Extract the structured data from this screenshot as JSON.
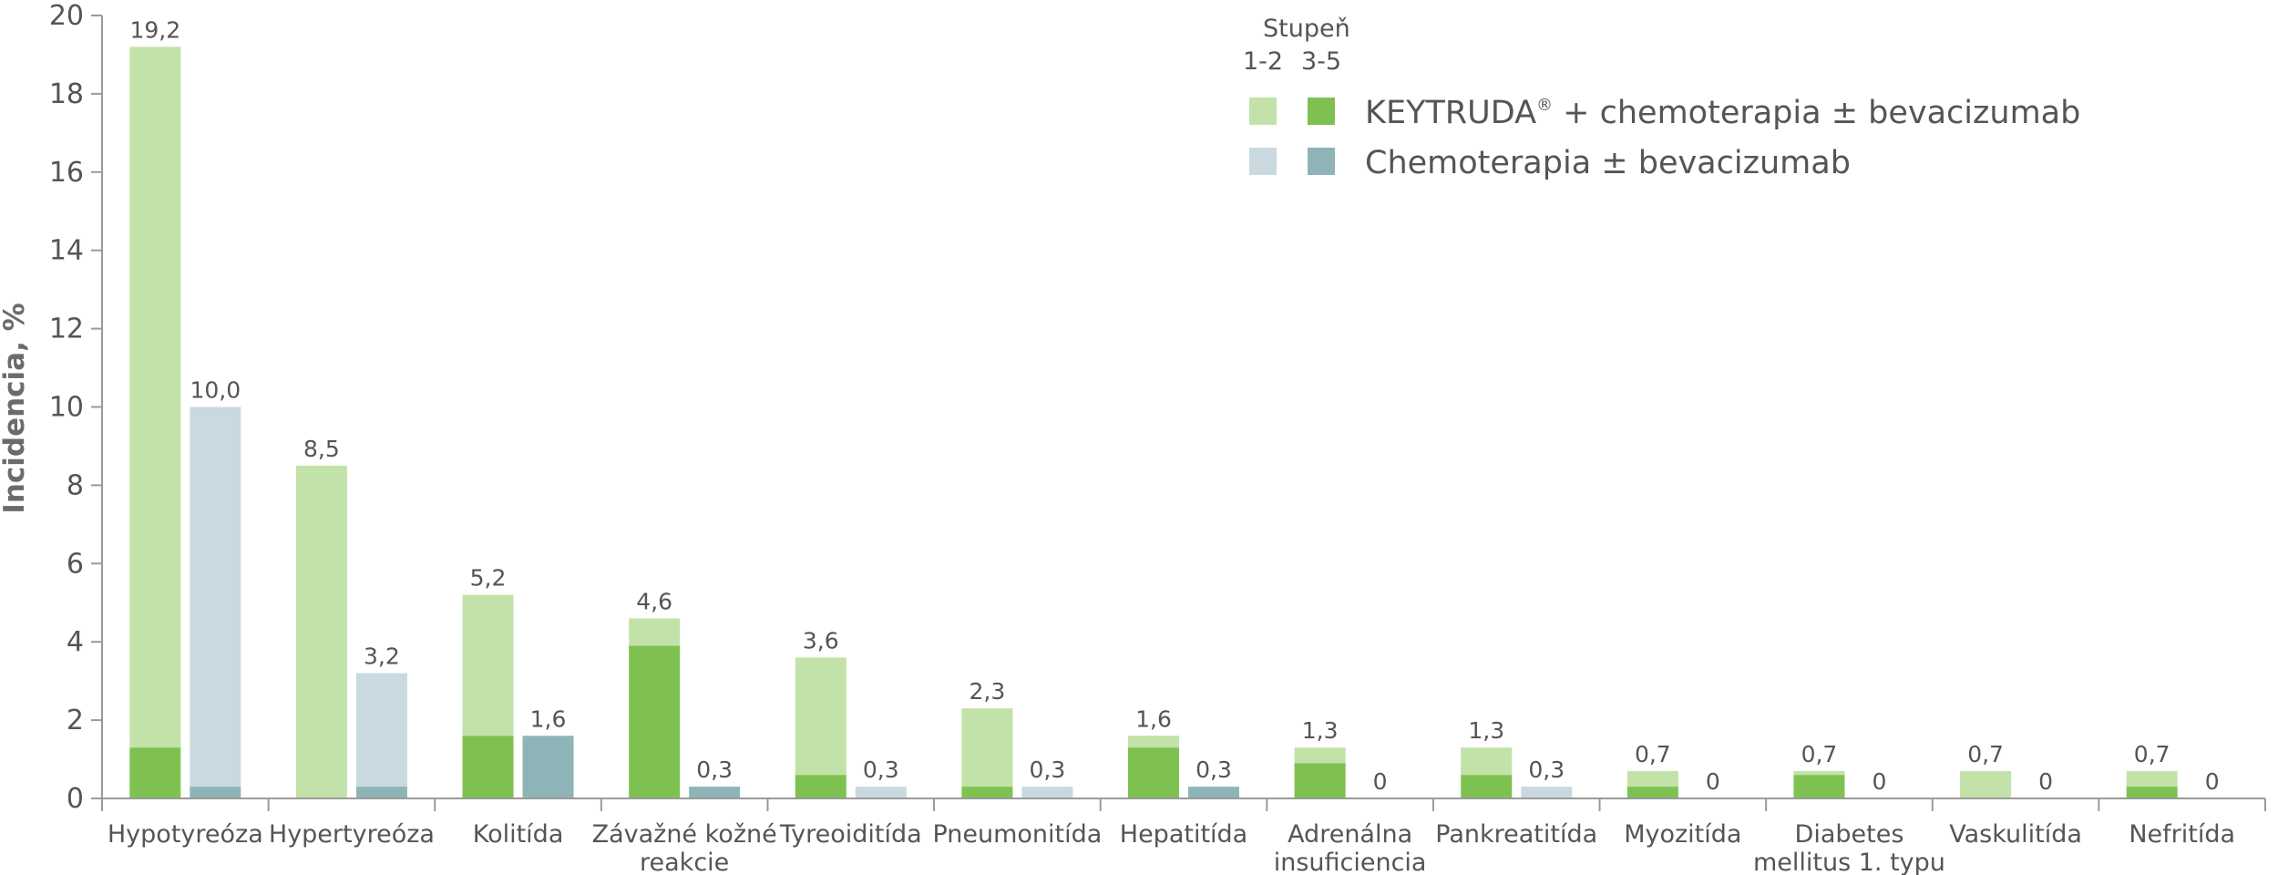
{
  "chart_data": {
    "type": "bar",
    "ylabel": "Incidencia, %",
    "ylim": [
      0,
      20
    ],
    "yticks": [
      0,
      2,
      4,
      6,
      8,
      10,
      12,
      14,
      16,
      18,
      20
    ],
    "categories": [
      [
        "Hypotyreóza"
      ],
      [
        "Hypertyreóza"
      ],
      [
        "Kolitída"
      ],
      [
        "Závažné kožné",
        "reakcie"
      ],
      [
        "Tyreoiditída"
      ],
      [
        "Pneumonitída"
      ],
      [
        "Hepatitída"
      ],
      [
        "Adrenálna",
        "insuficiencia"
      ],
      [
        "Pankreatitída"
      ],
      [
        "Myozitída"
      ],
      [
        "Diabetes",
        "mellitus 1. typu"
      ],
      [
        "Vaskulitída"
      ],
      [
        "Nefritída"
      ]
    ],
    "series": [
      {
        "name": "KEYTRUDA® + chemoterapia ± bevacizumab",
        "total": [
          19.2,
          8.5,
          5.2,
          4.6,
          3.6,
          2.3,
          1.6,
          1.3,
          1.3,
          0.7,
          0.7,
          0.7,
          0.7
        ],
        "total_labels": [
          "19,2",
          "8,5",
          "5,2",
          "4,6",
          "3,6",
          "2,3",
          "1,6",
          "1,3",
          "1,3",
          "0,7",
          "0,7",
          "0,7",
          "0,7"
        ],
        "grade_3_5": [
          1.3,
          0,
          1.6,
          3.9,
          0.6,
          0.3,
          1.3,
          0.9,
          0.6,
          0.3,
          0.6,
          0,
          0.3
        ],
        "color_grade_1_2": "#c2e2a9",
        "color_grade_3_5": "#7ec150"
      },
      {
        "name": "Chemoterapia ± bevacizumab",
        "total": [
          10.0,
          3.2,
          1.6,
          0.3,
          0.3,
          0.3,
          0.3,
          0,
          0.3,
          0,
          0,
          0,
          0
        ],
        "total_labels": [
          "10,0",
          "3,2",
          "1,6",
          "0,3",
          "0,3",
          "0,3",
          "0,3",
          "0",
          "0,3",
          "0",
          "0",
          "0",
          "0"
        ],
        "grade_3_5": [
          0.3,
          0.3,
          1.6,
          0.3,
          0,
          0,
          0.3,
          0,
          0,
          0,
          0,
          0,
          0
        ],
        "color_grade_1_2": "#c9d9df",
        "color_grade_3_5": "#8eb4b8"
      }
    ],
    "legend": {
      "title": "Stupeň",
      "grade_1_2": "1-2",
      "grade_3_5": "3-5",
      "entries": [
        {
          "main": "KEYTRUDA",
          "sup": "®",
          "rest": " + chemoterapia ±  bevacizumab"
        },
        {
          "main": "Chemoterapia ±  bevacizumab",
          "sup": "",
          "rest": ""
        }
      ]
    },
    "axis_color": "#9a9a9a"
  }
}
